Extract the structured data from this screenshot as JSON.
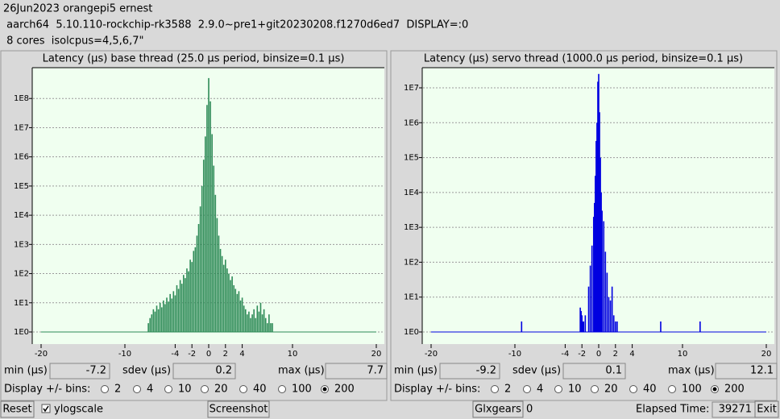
{
  "header": {
    "line1": "26Jun2023 orangepi5 ernest",
    "line2": " aarch64  5.10.110-rockchip-rk3588  2.9.0~pre1+git20230208.f1270d6ed7  DISPLAY=:0",
    "line3": " 8 cores  isolcpus=4,5,6,7\""
  },
  "chart_data": [
    {
      "type": "bar",
      "title": "Latency (µs) base thread (25.0 µs period, binsize=0.1 µs)",
      "color": "#2e8b57",
      "log_scale": true,
      "grid": true,
      "x": [
        -7.2,
        -7.0,
        -6.8,
        -6.6,
        -6.4,
        -6.2,
        -6.0,
        -5.8,
        -5.6,
        -5.4,
        -5.2,
        -5.0,
        -4.8,
        -4.6,
        -4.4,
        -4.2,
        -4.0,
        -3.8,
        -3.6,
        -3.4,
        -3.2,
        -3.0,
        -2.8,
        -2.6,
        -2.4,
        -2.2,
        -2.0,
        -1.8,
        -1.6,
        -1.4,
        -1.2,
        -1.0,
        -0.8,
        -0.6,
        -0.4,
        -0.2,
        0,
        0.2,
        0.4,
        0.6,
        0.8,
        1.0,
        1.2,
        1.4,
        1.6,
        1.8,
        2.0,
        2.2,
        2.4,
        2.6,
        2.8,
        3.0,
        3.2,
        3.4,
        3.6,
        3.8,
        4.0,
        4.2,
        4.4,
        4.6,
        4.8,
        5.0,
        5.2,
        5.4,
        5.6,
        5.8,
        6.0,
        6.2,
        6.4,
        6.6,
        6.8,
        7.0,
        7.2,
        7.4,
        7.6
      ],
      "values": [
        2,
        3,
        4,
        6,
        5,
        8,
        6,
        10,
        7,
        12,
        9,
        15,
        11,
        20,
        14,
        25,
        18,
        40,
        30,
        60,
        45,
        90,
        70,
        150,
        120,
        300,
        250,
        600,
        800,
        2000,
        5000,
        20000,
        100000,
        800000,
        5000000,
        60000000,
        500000000,
        80000000,
        6000000,
        500000,
        50000,
        8000,
        2000,
        700,
        400,
        200,
        300,
        150,
        100,
        60,
        80,
        40,
        30,
        20,
        25,
        12,
        15,
        8,
        6,
        4,
        5,
        3,
        4,
        6,
        3,
        8,
        5,
        10,
        4,
        6,
        3,
        2,
        4,
        2,
        2
      ],
      "xlim": [
        -20,
        20
      ],
      "xticks": [
        -20,
        -10,
        -4,
        -2,
        0,
        2,
        4,
        10,
        20
      ],
      "ylim": [
        1,
        1000000000
      ],
      "yticks": [
        {
          "value": 1,
          "label": "1E0"
        },
        {
          "value": 10,
          "label": "1E1"
        },
        {
          "value": 100,
          "label": "1E2"
        },
        {
          "value": 1000,
          "label": "1E3"
        },
        {
          "value": 10000,
          "label": "1E4"
        },
        {
          "value": 100000,
          "label": "1E5"
        },
        {
          "value": 1000000,
          "label": "1E6"
        },
        {
          "value": 10000000,
          "label": "1E7"
        },
        {
          "value": 100000000,
          "label": "1E8"
        }
      ]
    },
    {
      "type": "bar",
      "title": "Latency (µs) servo thread (1000.0 µs period, binsize=0.1 µs)",
      "color": "#0000e0",
      "log_scale": true,
      "grid": true,
      "x": [
        -9.2,
        -2.2,
        -2.1,
        -2.0,
        -1.9,
        -1.8,
        -1.6,
        -1.2,
        -1.0,
        -0.8,
        -0.6,
        -0.5,
        -0.4,
        -0.3,
        -0.2,
        -0.1,
        0,
        0.1,
        0.2,
        0.3,
        0.4,
        0.6,
        0.8,
        1.0,
        1.2,
        1.4,
        1.6,
        1.8,
        2.0,
        2.2,
        7.4,
        12.1
      ],
      "values": [
        2,
        5,
        4,
        3,
        2,
        2,
        3,
        20,
        80,
        300,
        2000,
        5000,
        30000,
        300000,
        1000000,
        15000000,
        25000000,
        2000000,
        100000,
        10000,
        3000,
        1500,
        200,
        50,
        10,
        8,
        20,
        3,
        2,
        2,
        2,
        2
      ],
      "xlim": [
        -20,
        20
      ],
      "xticks": [
        -20,
        -10,
        -4,
        -2,
        0,
        2,
        4,
        10,
        20
      ],
      "ylim": [
        1,
        34000000
      ],
      "yticks": [
        {
          "value": 1,
          "label": "1E0"
        },
        {
          "value": 10,
          "label": "1E1"
        },
        {
          "value": 100,
          "label": "1E2"
        },
        {
          "value": 1000,
          "label": "1E3"
        },
        {
          "value": 10000,
          "label": "1E4"
        },
        {
          "value": 100000,
          "label": "1E5"
        },
        {
          "value": 1000000,
          "label": "1E6"
        },
        {
          "value": 10000000,
          "label": "1E7"
        }
      ]
    }
  ],
  "panels": [
    {
      "min_label": "min (µs)",
      "min": "-7.2",
      "sdev_label": "sdev (µs)",
      "sdev": "0.2",
      "max_label": "max (µs)",
      "max": "7.7",
      "bins_label": "Display +/- bins:",
      "bins": [
        "2",
        "4",
        "10",
        "20",
        "40",
        "100",
        "200"
      ],
      "selected": "200"
    },
    {
      "min_label": "min (µs)",
      "min": "-9.2",
      "sdev_label": "sdev (µs)",
      "sdev": "0.1",
      "max_label": "max (µs)",
      "max": "12.1",
      "bins_label": "Display +/- bins:",
      "bins": [
        "2",
        "4",
        "10",
        "20",
        "40",
        "100",
        "200"
      ],
      "selected": "200"
    }
  ],
  "footer": {
    "reset": "Reset",
    "ylogscale": "ylogscale",
    "ylogscale_checked": true,
    "screenshot": "Screenshot",
    "glxgears": "Glxgears",
    "glxgears_count": "0",
    "elapsed_label": "Elapsed Time:",
    "elapsed": "39271",
    "exit": "Exit"
  }
}
